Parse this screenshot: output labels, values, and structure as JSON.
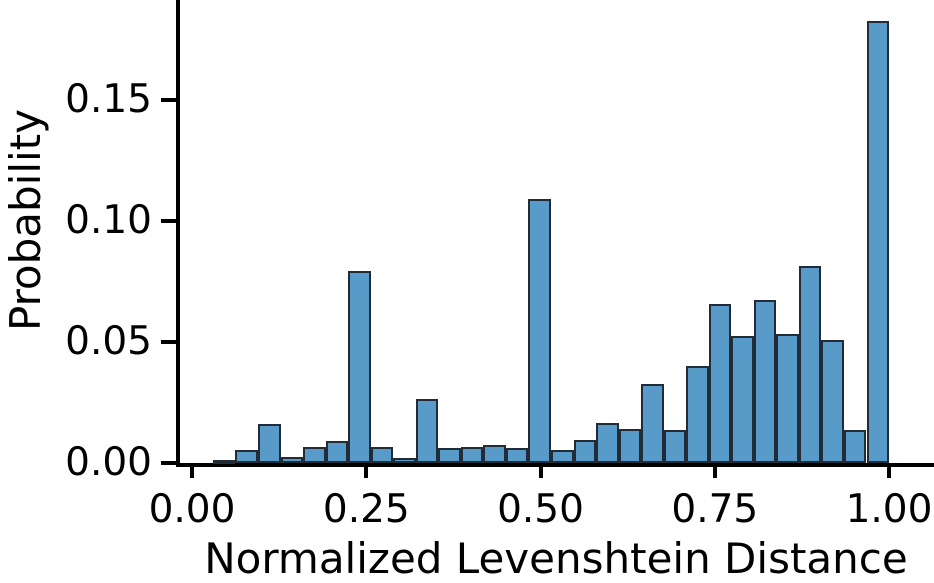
{
  "chart_data": {
    "type": "bar",
    "subtype": "histogram",
    "title": "",
    "xlabel": "Normalized Levenshtein Distance",
    "ylabel": "Probability",
    "bins": {
      "start": 0.03,
      "width": 0.0323333,
      "count": 30
    },
    "values": [
      0.001,
      0.0055,
      0.016,
      0.0025,
      0.0065,
      0.009,
      0.0795,
      0.0065,
      0.002,
      0.0265,
      0.006,
      0.0065,
      0.0075,
      0.006,
      0.109,
      0.0055,
      0.0095,
      0.0165,
      0.014,
      0.0325,
      0.0135,
      0.04,
      0.0655,
      0.0525,
      0.0675,
      0.0535,
      0.0815,
      0.051,
      0.0135,
      0.1825
    ],
    "x_ticks": {
      "values": [
        0,
        0.25,
        0.5,
        0.75,
        1.0
      ],
      "labels": [
        "0.00",
        "0.25",
        "0.50",
        "0.75",
        "1.00"
      ]
    },
    "y_ticks": {
      "values": [
        0,
        0.05,
        0.1,
        0.15
      ],
      "labels": [
        "0.00",
        "0.05",
        "0.10",
        "0.15"
      ]
    },
    "xlim": [
      -0.02,
      1.065
    ],
    "ylim": [
      0,
      0.192
    ],
    "grid": false,
    "legend": null,
    "colors": {
      "bar_fill": "#589BC8",
      "bar_edge": "#222C36",
      "axis": "#000000",
      "text": "#000000",
      "background": "#FFFFFF"
    }
  }
}
